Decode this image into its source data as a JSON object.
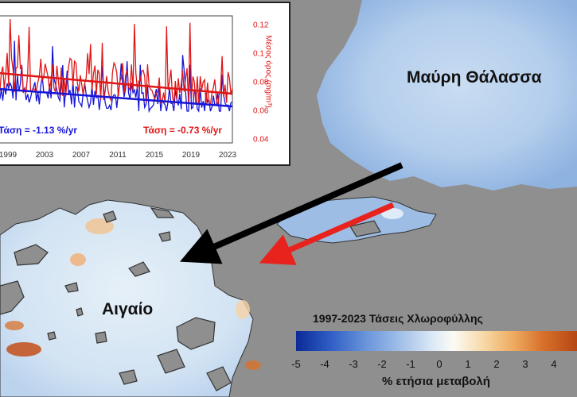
{
  "labels": {
    "black_sea": "Μαύρη Θάλασσα",
    "aegean": "Αιγαίο"
  },
  "inset": {
    "trend_blue": "Τάση = -1.13 %/yr",
    "trend_red": "Τάση = -0.73 %/yr",
    "y_axis_label": "Μέσος όρος (mg/m³)",
    "x_ticks": [
      "1999",
      "2003",
      "2007",
      "2011",
      "2015",
      "2019",
      "2023"
    ],
    "y_ticks": [
      "0.12",
      "0.1",
      "0.08",
      "0.06",
      "0.04"
    ],
    "y_range": [
      0.04,
      0.12
    ],
    "x_range": [
      1997,
      2024
    ],
    "series": [
      {
        "color": "#1515d8",
        "trend_start": 0.074,
        "trend_end": 0.063
      },
      {
        "color": "#e01616",
        "trend_start": 0.084,
        "trend_end": 0.071
      }
    ]
  },
  "legend": {
    "title": "1997-2023 Τάσεις Χλωροφύλλης",
    "ticks": [
      "-5",
      "-4",
      "-3",
      "-2",
      "-1",
      "0",
      "1",
      "2",
      "3",
      "4"
    ],
    "range": [
      -5,
      5
    ],
    "unit": "% ετήσια μεταβολή",
    "colors": [
      "#0b2a97",
      "#6c97dc",
      "#fbfbf4",
      "#eeaa60",
      "#b0400f"
    ]
  },
  "arrows": [
    {
      "name": "black-arrow",
      "color": "#000000"
    },
    {
      "name": "red-arrow",
      "color": "#e8231e"
    }
  ]
}
